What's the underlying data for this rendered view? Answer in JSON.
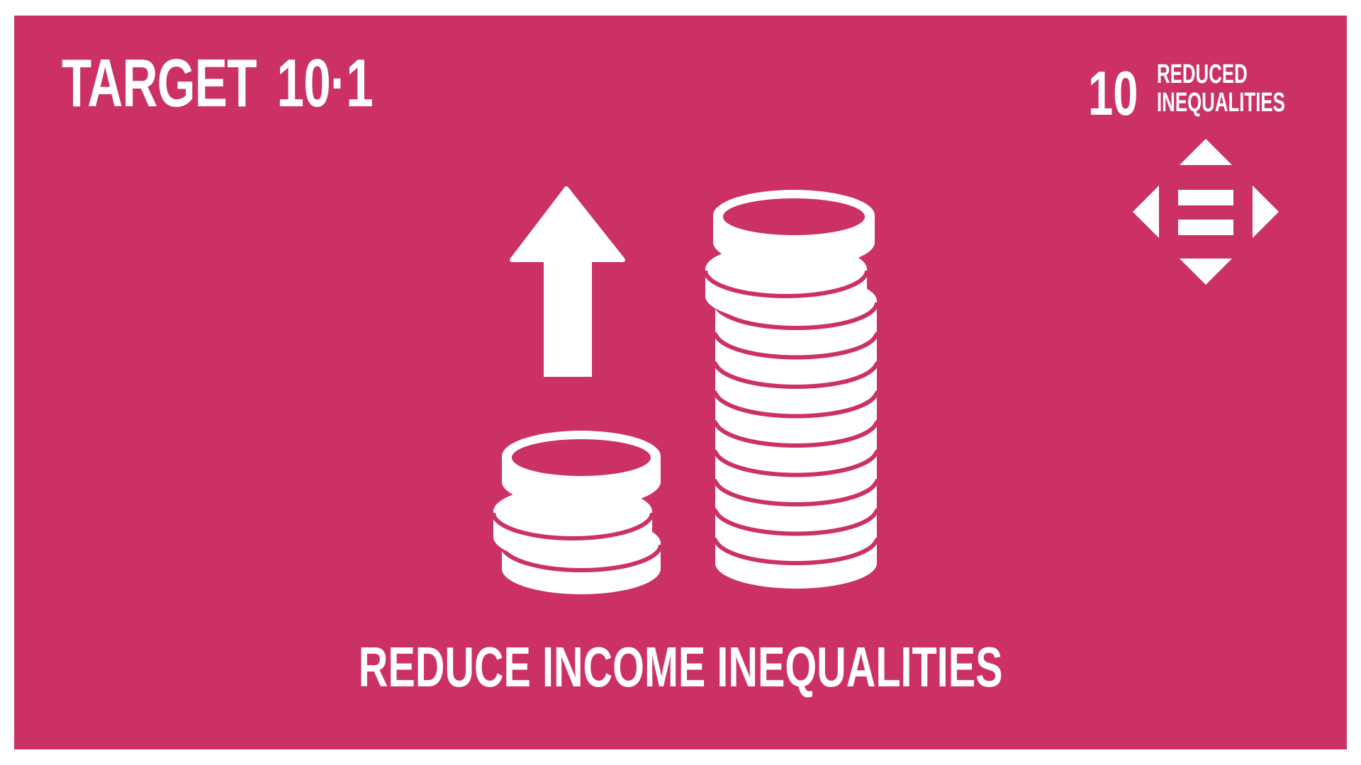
{
  "target": {
    "label": "TARGET",
    "number": "10·1"
  },
  "goal": {
    "number": "10",
    "name_line1": "REDUCED",
    "name_line2": "INEQUALITIES",
    "icon": "equality-arrows-icon"
  },
  "illustration": {
    "icons": [
      "up-arrow-icon",
      "small-coin-stack-icon",
      "tall-coin-stack-icon"
    ]
  },
  "caption": "REDUCE INCOME INEQUALITIES",
  "colors": {
    "background": "#CB3263",
    "foreground": "#FFFFFF",
    "frame": "#FFFFFF"
  }
}
